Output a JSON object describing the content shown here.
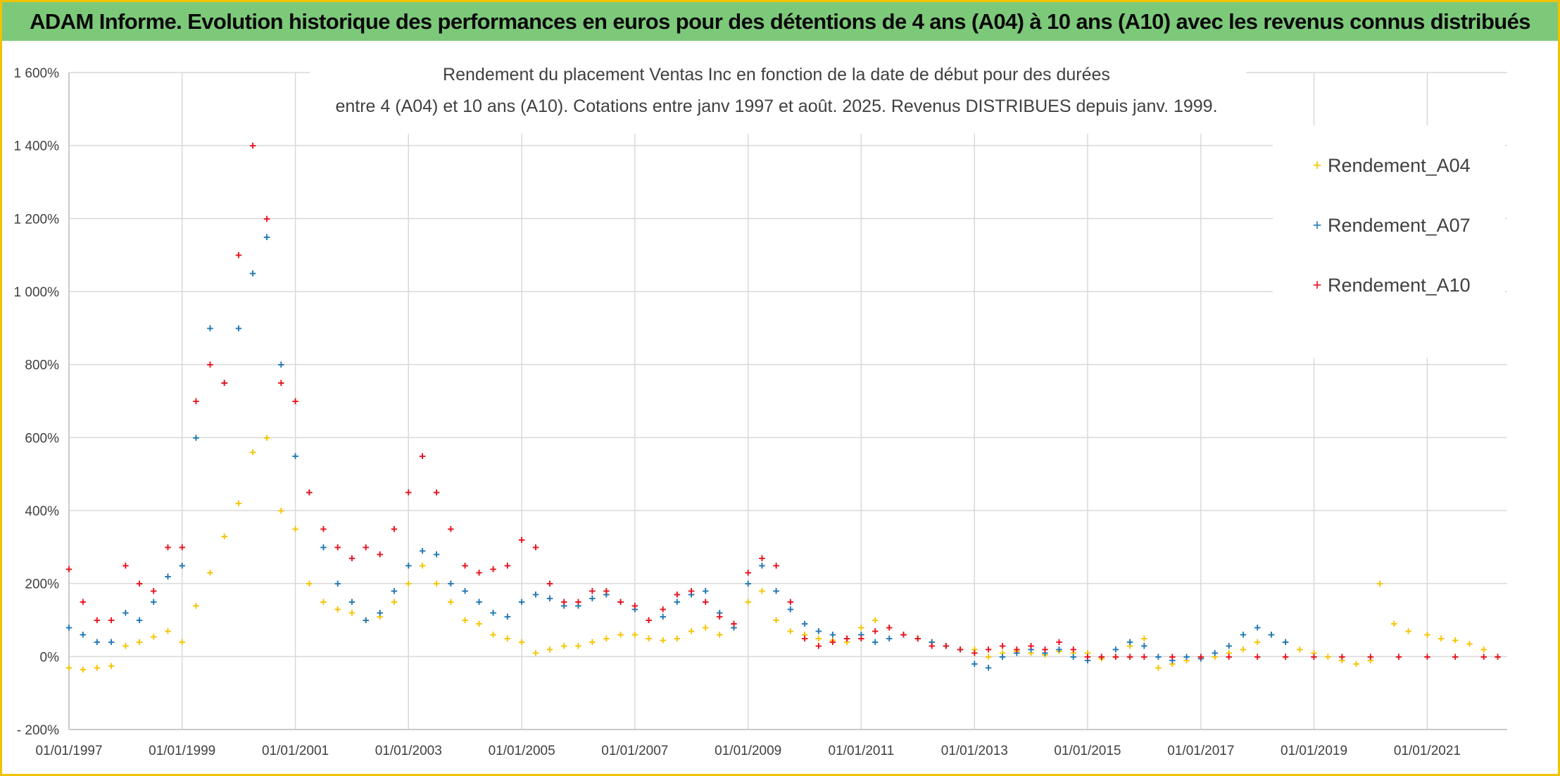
{
  "header": {
    "title": "ADAM Informe. Evolution historique des performances en euros pour des détentions de 4 ans (A04) à 10 ans (A10) avec les revenus connus distribués"
  },
  "colors": {
    "banner": "#7dc97a",
    "frame": "#f2c200",
    "A04": "#f5c400",
    "A07": "#1f77b4",
    "A10": "#e8101c"
  },
  "chart_data": {
    "type": "scatter",
    "title_line1": "Rendement du placement Ventas Inc en fonction de la date de début pour des durées",
    "title_line2": "entre 4 (A04) et 10 ans (A10). Cotations entre janv 1997 et août. 2025. Revenus DISTRIBUES depuis janv. 1999.",
    "xlabel": "",
    "ylabel": "",
    "x_range": [
      "1997-01-01",
      "2022-06-01"
    ],
    "ylim": [
      -200,
      1600
    ],
    "y_unit": "%",
    "grid": true,
    "legend_position": "top-right",
    "y_ticks": [
      "1 600%",
      "1 400%",
      "1 200%",
      "1 000%",
      "800%",
      "600%",
      "400%",
      "200%",
      "0%",
      "- 200%"
    ],
    "y_tick_values": [
      1600,
      1400,
      1200,
      1000,
      800,
      600,
      400,
      200,
      0,
      -200
    ],
    "x_ticks": [
      "01/01/1997",
      "01/01/1999",
      "01/01/2001",
      "01/01/2003",
      "01/01/2005",
      "01/01/2007",
      "01/01/2009",
      "01/01/2011",
      "01/01/2013",
      "01/01/2015",
      "01/01/2017",
      "01/01/2019",
      "01/01/2021"
    ],
    "x_tick_dates": [
      "1997-01-01",
      "1999-01-01",
      "2001-01-01",
      "2003-01-01",
      "2005-01-01",
      "2007-01-01",
      "2009-01-01",
      "2011-01-01",
      "2013-01-01",
      "2015-01-01",
      "2017-01-01",
      "2019-01-01",
      "2021-01-01"
    ],
    "series": [
      {
        "name": "Rendement_A04",
        "x": [
          "1997-01-01",
          "1997-04-01",
          "1997-07-01",
          "1997-10-01",
          "1998-01-01",
          "1998-04-01",
          "1998-07-01",
          "1998-10-01",
          "1999-01-01",
          "1999-04-01",
          "1999-07-01",
          "1999-10-01",
          "2000-01-01",
          "2000-04-01",
          "2000-07-01",
          "2000-10-01",
          "2001-01-01",
          "2001-04-01",
          "2001-07-01",
          "2001-10-01",
          "2002-01-01",
          "2002-04-01",
          "2002-07-01",
          "2002-10-01",
          "2003-01-01",
          "2003-04-01",
          "2003-07-01",
          "2003-10-01",
          "2004-01-01",
          "2004-04-01",
          "2004-07-01",
          "2004-10-01",
          "2005-01-01",
          "2005-04-01",
          "2005-07-01",
          "2005-10-01",
          "2006-01-01",
          "2006-04-01",
          "2006-07-01",
          "2006-10-01",
          "2007-01-01",
          "2007-04-01",
          "2007-07-01",
          "2007-10-01",
          "2008-01-01",
          "2008-04-01",
          "2008-07-01",
          "2008-10-01",
          "2009-01-01",
          "2009-04-01",
          "2009-07-01",
          "2009-10-01",
          "2010-01-01",
          "2010-04-01",
          "2010-07-01",
          "2010-10-01",
          "2011-01-01",
          "2011-04-01",
          "2011-07-01",
          "2011-10-01",
          "2012-01-01",
          "2012-04-01",
          "2012-07-01",
          "2012-10-01",
          "2013-01-01",
          "2013-04-01",
          "2013-07-01",
          "2013-10-01",
          "2014-01-01",
          "2014-04-01",
          "2014-07-01",
          "2014-10-01",
          "2015-01-01",
          "2015-04-01",
          "2015-07-01",
          "2015-10-01",
          "2016-01-01",
          "2016-04-01",
          "2016-07-01",
          "2016-10-01",
          "2017-01-01",
          "2017-04-01",
          "2017-07-01",
          "2017-10-01",
          "2018-01-01",
          "2018-04-01",
          "2018-07-01",
          "2018-10-01",
          "2019-01-01",
          "2019-04-01",
          "2019-07-01",
          "2019-10-01",
          "2020-01-01",
          "2020-03-01",
          "2020-06-01",
          "2020-09-01",
          "2021-01-01",
          "2021-04-01",
          "2021-07-01",
          "2021-10-01",
          "2022-01-01",
          "2022-04-01"
        ],
        "y": [
          -30,
          -35,
          -30,
          -25,
          30,
          40,
          55,
          70,
          40,
          140,
          230,
          330,
          420,
          560,
          600,
          400,
          350,
          200,
          150,
          130,
          120,
          100,
          110,
          150,
          200,
          250,
          200,
          150,
          100,
          90,
          60,
          50,
          40,
          10,
          20,
          30,
          30,
          40,
          50,
          60,
          60,
          50,
          45,
          50,
          70,
          80,
          60,
          80,
          150,
          180,
          100,
          70,
          60,
          50,
          45,
          40,
          80,
          100,
          80,
          60,
          50,
          40,
          30,
          20,
          20,
          0,
          10,
          15,
          10,
          5,
          15,
          10,
          10,
          -5,
          0,
          30,
          50,
          -30,
          -20,
          -10,
          -5,
          0,
          10,
          20,
          40,
          60,
          40,
          20,
          10,
          0,
          -10,
          -20,
          -10,
          200,
          90,
          70,
          60,
          50,
          45,
          35,
          20,
          0
        ]
      },
      {
        "name": "Rendement_A07",
        "x": [
          "1997-01-01",
          "1997-04-01",
          "1997-07-01",
          "1997-10-01",
          "1998-01-01",
          "1998-04-01",
          "1998-07-01",
          "1998-10-01",
          "1999-01-01",
          "1999-04-01",
          "1999-07-01",
          "1999-10-01",
          "2000-01-01",
          "2000-04-01",
          "2000-07-01",
          "2000-10-01",
          "2001-01-01",
          "2001-04-01",
          "2001-07-01",
          "2001-10-01",
          "2002-01-01",
          "2002-04-01",
          "2002-07-01",
          "2002-10-01",
          "2003-01-01",
          "2003-04-01",
          "2003-07-01",
          "2003-10-01",
          "2004-01-01",
          "2004-04-01",
          "2004-07-01",
          "2004-10-01",
          "2005-01-01",
          "2005-04-01",
          "2005-07-01",
          "2005-10-01",
          "2006-01-01",
          "2006-04-01",
          "2006-07-01",
          "2006-10-01",
          "2007-01-01",
          "2007-04-01",
          "2007-07-01",
          "2007-10-01",
          "2008-01-01",
          "2008-04-01",
          "2008-07-01",
          "2008-10-01",
          "2009-01-01",
          "2009-04-01",
          "2009-07-01",
          "2009-10-01",
          "2010-01-01",
          "2010-04-01",
          "2010-07-01",
          "2010-10-01",
          "2011-01-01",
          "2011-04-01",
          "2011-07-01",
          "2011-10-01",
          "2012-01-01",
          "2012-04-01",
          "2012-07-01",
          "2012-10-01",
          "2013-01-01",
          "2013-04-01",
          "2013-07-01",
          "2013-10-01",
          "2014-01-01",
          "2014-04-01",
          "2014-07-01",
          "2014-10-01",
          "2015-01-01",
          "2015-04-01",
          "2015-07-01",
          "2015-10-01",
          "2016-01-01",
          "2016-04-01",
          "2016-07-01",
          "2016-10-01",
          "2017-01-01",
          "2017-04-01",
          "2017-07-01",
          "2017-10-01",
          "2018-01-01",
          "2018-04-01",
          "2018-07-01"
        ],
        "y": [
          80,
          60,
          40,
          40,
          120,
          100,
          150,
          220,
          250,
          600,
          900,
          750,
          900,
          1050,
          1150,
          800,
          550,
          450,
          300,
          200,
          150,
          100,
          120,
          180,
          250,
          290,
          280,
          200,
          180,
          150,
          120,
          110,
          150,
          170,
          160,
          140,
          140,
          160,
          170,
          150,
          130,
          100,
          110,
          150,
          170,
          180,
          120,
          80,
          200,
          250,
          180,
          130,
          90,
          70,
          60,
          50,
          60,
          40,
          50,
          60,
          50,
          40,
          30,
          20,
          -20,
          -30,
          0,
          10,
          20,
          10,
          20,
          0,
          -10,
          0,
          20,
          40,
          30,
          0,
          -10,
          0,
          -5,
          10,
          30,
          60,
          80,
          60,
          40
        ]
      },
      {
        "name": "Rendement_A10",
        "x": [
          "1997-01-01",
          "1997-04-01",
          "1997-07-01",
          "1997-10-01",
          "1998-01-01",
          "1998-04-01",
          "1998-07-01",
          "1998-10-01",
          "1999-01-01",
          "1999-04-01",
          "1999-07-01",
          "1999-10-01",
          "2000-01-01",
          "2000-04-01",
          "2000-07-01",
          "2000-10-01",
          "2001-01-01",
          "2001-04-01",
          "2001-07-01",
          "2001-10-01",
          "2002-01-01",
          "2002-04-01",
          "2002-07-01",
          "2002-10-01",
          "2003-01-01",
          "2003-04-01",
          "2003-07-01",
          "2003-10-01",
          "2004-01-01",
          "2004-04-01",
          "2004-07-01",
          "2004-10-01",
          "2005-01-01",
          "2005-04-01",
          "2005-07-01",
          "2005-10-01",
          "2006-01-01",
          "2006-04-01",
          "2006-07-01",
          "2006-10-01",
          "2007-01-01",
          "2007-04-01",
          "2007-07-01",
          "2007-10-01",
          "2008-01-01",
          "2008-04-01",
          "2008-07-01",
          "2008-10-01",
          "2009-01-01",
          "2009-04-01",
          "2009-07-01",
          "2009-10-01",
          "2010-01-01",
          "2010-04-01",
          "2010-07-01",
          "2010-10-01",
          "2011-01-01",
          "2011-04-01",
          "2011-07-01",
          "2011-10-01",
          "2012-01-01",
          "2012-04-01",
          "2012-07-01",
          "2012-10-01",
          "2013-01-01",
          "2013-04-01",
          "2013-07-01",
          "2013-10-01",
          "2014-01-01",
          "2014-04-01",
          "2014-07-01",
          "2014-10-01",
          "2015-01-01",
          "2015-04-01",
          "2015-07-01",
          "2015-10-01",
          "2016-01-01",
          "2016-07-01",
          "2017-01-01",
          "2017-07-01",
          "2018-01-01",
          "2018-07-01",
          "2019-01-01",
          "2019-07-01",
          "2020-01-01",
          "2020-07-01",
          "2021-01-01",
          "2021-07-01",
          "2022-01-01",
          "2022-04-01"
        ],
        "y": [
          240,
          150,
          100,
          100,
          250,
          200,
          180,
          300,
          300,
          700,
          800,
          750,
          1100,
          1400,
          1200,
          750,
          700,
          450,
          350,
          300,
          270,
          300,
          280,
          350,
          450,
          550,
          450,
          350,
          250,
          230,
          240,
          250,
          320,
          300,
          200,
          150,
          150,
          180,
          180,
          150,
          140,
          100,
          130,
          170,
          180,
          150,
          110,
          90,
          230,
          270,
          250,
          150,
          50,
          30,
          40,
          50,
          50,
          70,
          80,
          60,
          50,
          30,
          30,
          20,
          10,
          20,
          30,
          20,
          30,
          20,
          40,
          20,
          0,
          0,
          0,
          0,
          0,
          0,
          0,
          0,
          0,
          0,
          0,
          0,
          0,
          0,
          0,
          0,
          0,
          0
        ]
      }
    ]
  }
}
